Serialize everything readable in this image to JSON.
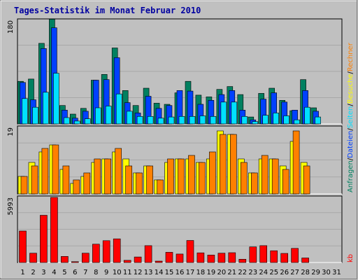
{
  "chart_data": [
    {
      "type": "bar",
      "panel": "top",
      "title": "Tages-Statistik im Monat Februar 2010",
      "categories": [
        "1",
        "2",
        "3",
        "4",
        "5",
        "6",
        "7",
        "8",
        "9",
        "10",
        "11",
        "12",
        "13",
        "14",
        "15",
        "16",
        "17",
        "18",
        "19",
        "20",
        "21",
        "22",
        "23",
        "24",
        "25",
        "26",
        "27",
        "28",
        "29",
        "30",
        "31"
      ],
      "weekend_days": [
        "6",
        "7",
        "13",
        "14",
        "20",
        "21",
        "27",
        "28"
      ],
      "y_max_label": "180",
      "ylim": [
        0,
        180
      ],
      "series": [
        {
          "name": "Anfragen",
          "color": "#008060",
          "values": [
            74,
            78,
            140,
            182,
            32,
            17,
            27,
            76,
            86,
            132,
            58,
            32,
            62,
            36,
            34,
            54,
            74,
            50,
            47,
            60,
            65,
            51,
            12,
            53,
            62,
            41,
            23,
            77,
            28,
            0,
            0
          ]
        },
        {
          "name": "Dateien",
          "color": "#0040ff",
          "values": [
            72,
            42,
            131,
            167,
            24,
            10,
            22,
            76,
            77,
            115,
            37,
            19,
            48,
            27,
            32,
            58,
            57,
            34,
            41,
            51,
            58,
            24,
            7,
            43,
            54,
            38,
            24,
            58,
            22,
            0,
            0
          ]
        },
        {
          "name": "Seiten",
          "color": "#00e0ff",
          "values": [
            44,
            29,
            55,
            88,
            11,
            5,
            9,
            28,
            31,
            52,
            22,
            13,
            13,
            10,
            12,
            13,
            13,
            14,
            13,
            38,
            38,
            13,
            4,
            15,
            19,
            14,
            7,
            29,
            12,
            0,
            0
          ]
        }
      ]
    },
    {
      "type": "bar",
      "panel": "middle",
      "categories": [
        "1",
        "2",
        "3",
        "4",
        "5",
        "6",
        "7",
        "8",
        "9",
        "10",
        "11",
        "12",
        "13",
        "14",
        "15",
        "16",
        "17",
        "18",
        "19",
        "20",
        "21",
        "22",
        "23",
        "24",
        "25",
        "26",
        "27",
        "28",
        "29",
        "30",
        "31"
      ],
      "y_max_label": "19",
      "ylim": [
        0,
        19
      ],
      "series": [
        {
          "name": "Besuche",
          "color": "#ffff00",
          "values": [
            5,
            9,
            12,
            14,
            7,
            3,
            5,
            9,
            10,
            12,
            10,
            6,
            8,
            4,
            9,
            10,
            10,
            9,
            10,
            18,
            17,
            10,
            6,
            10,
            10,
            8,
            15,
            9,
            0,
            0,
            0
          ]
        },
        {
          "name": "Rechner",
          "color": "#ff8000",
          "values": [
            5,
            8,
            13,
            14,
            8,
            4,
            6,
            10,
            10,
            13,
            8,
            6,
            8,
            4,
            10,
            10,
            11,
            9,
            12,
            17,
            17,
            9,
            6,
            11,
            10,
            7,
            18,
            8,
            0,
            0,
            0
          ]
        }
      ]
    },
    {
      "type": "bar",
      "panel": "bottom",
      "categories": [
        "1",
        "2",
        "3",
        "4",
        "5",
        "6",
        "7",
        "8",
        "9",
        "10",
        "11",
        "12",
        "13",
        "14",
        "15",
        "16",
        "17",
        "18",
        "19",
        "20",
        "21",
        "22",
        "23",
        "24",
        "25",
        "26",
        "27",
        "28",
        "29",
        "30",
        "31"
      ],
      "y_max_label": "5993",
      "ylim": [
        0,
        5993
      ],
      "series": [
        {
          "name": "kb",
          "color": "#ff0000",
          "values": [
            2900,
            860,
            4350,
            5993,
            560,
            80,
            860,
            1690,
            2010,
            2180,
            200,
            510,
            1550,
            130,
            940,
            780,
            2030,
            890,
            690,
            860,
            900,
            300,
            1440,
            1550,
            1080,
            840,
            1300,
            420,
            0,
            0,
            0
          ]
        }
      ]
    }
  ],
  "right_labels": {
    "top": [
      {
        "text": "Anfragen",
        "color": "#008060"
      },
      {
        "text": "/",
        "color": "#000000"
      },
      {
        "text": "Dateien",
        "color": "#0040ff"
      },
      {
        "text": "/",
        "color": "#000000"
      },
      {
        "text": "Seiten",
        "color": "#00e0ff"
      },
      {
        "text": "/",
        "color": "#000000"
      },
      {
        "text": "Besuche",
        "color": "#ffff00"
      },
      {
        "text": "/",
        "color": "#000000"
      },
      {
        "text": "Rechner",
        "color": "#ff8000"
      }
    ],
    "bottom": {
      "text": "kb",
      "color": "#ff0000"
    }
  },
  "colors": {
    "background": "#c0c0c0",
    "title": "#0000a0",
    "weekend_day": "#008040",
    "weekday": "#000000",
    "gridline": "#a8a8a8"
  }
}
